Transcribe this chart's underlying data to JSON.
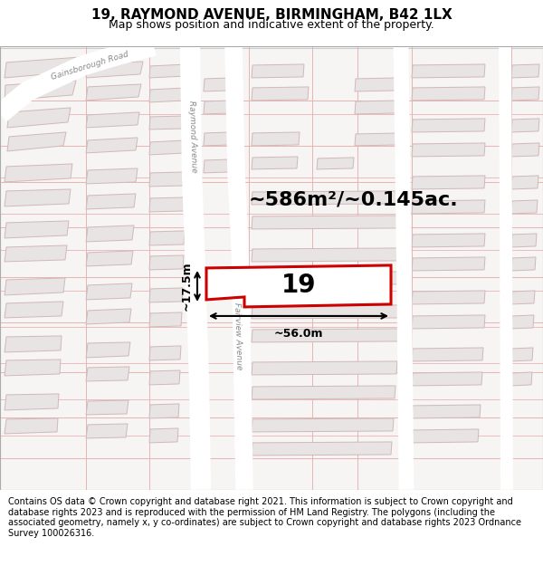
{
  "title": "19, RAYMOND AVENUE, BIRMINGHAM, B42 1LX",
  "subtitle": "Map shows position and indicative extent of the property.",
  "footer": "Contains OS data © Crown copyright and database right 2021. This information is subject to Crown copyright and database rights 2023 and is reproduced with the permission of HM Land Registry. The polygons (including the associated geometry, namely x, y co-ordinates) are subject to Crown copyright and database rights 2023 Ordnance Survey 100026316.",
  "area_text": "~586m²/~0.145ac.",
  "width_text": "~56.0m",
  "height_text": "~17.5m",
  "label_text": "19",
  "title_fontsize": 11,
  "subtitle_fontsize": 9,
  "footer_fontsize": 7.0,
  "label_fontsize": 20,
  "area_fontsize": 16,
  "map_bg": "#f7f4f4",
  "plot_fill": "#ffffff",
  "plot_edge": "#cc0000",
  "building_fill": "#e8e4e4",
  "building_edge": "#d0b8b8",
  "road_fill": "#ffffff",
  "pink_line": "#e8b4b4",
  "gray_line": "#cccccc",
  "street_label_color": "#888888"
}
